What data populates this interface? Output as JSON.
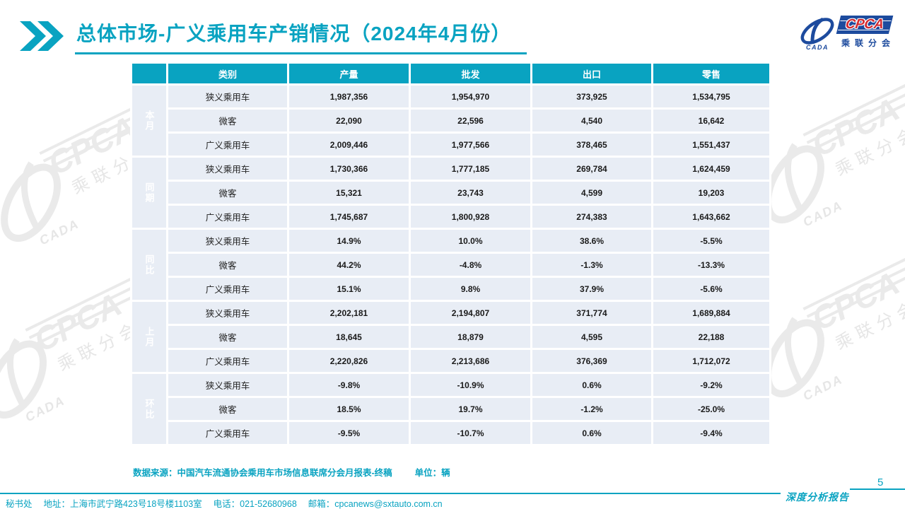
{
  "header": {
    "title": "总体市场-广义乘用车产销情况（2024年4月份）"
  },
  "logo": {
    "cpca_text": "CPCA",
    "cada_text": "CADA",
    "subtitle": "乘联分会"
  },
  "icons": {
    "title_marker": "double-chevron-right",
    "logo_mark": "cada-swoosh-ellipse"
  },
  "table": {
    "columns": [
      "类别",
      "产量",
      "批发",
      "出口",
      "零售"
    ],
    "groups": [
      {
        "label": "本月",
        "rows": [
          {
            "category": "狭义乘用车",
            "values": [
              "1,987,356",
              "1,954,970",
              "373,925",
              "1,534,795"
            ]
          },
          {
            "category": "微客",
            "values": [
              "22,090",
              "22,596",
              "4,540",
              "16,642"
            ]
          },
          {
            "category": "广义乘用车",
            "values": [
              "2,009,446",
              "1,977,566",
              "378,465",
              "1,551,437"
            ]
          }
        ]
      },
      {
        "label": "同期",
        "rows": [
          {
            "category": "狭义乘用车",
            "values": [
              "1,730,366",
              "1,777,185",
              "269,784",
              "1,624,459"
            ]
          },
          {
            "category": "微客",
            "values": [
              "15,321",
              "23,743",
              "4,599",
              "19,203"
            ]
          },
          {
            "category": "广义乘用车",
            "values": [
              "1,745,687",
              "1,800,928",
              "274,383",
              "1,643,662"
            ]
          }
        ]
      },
      {
        "label": "同比",
        "rows": [
          {
            "category": "狭义乘用车",
            "values": [
              "14.9%",
              "10.0%",
              "38.6%",
              "-5.5%"
            ]
          },
          {
            "category": "微客",
            "values": [
              "44.2%",
              "-4.8%",
              "-1.3%",
              "-13.3%"
            ]
          },
          {
            "category": "广义乘用车",
            "values": [
              "15.1%",
              "9.8%",
              "37.9%",
              "-5.6%"
            ]
          }
        ]
      },
      {
        "label": "上月",
        "rows": [
          {
            "category": "狭义乘用车",
            "values": [
              "2,202,181",
              "2,194,807",
              "371,774",
              "1,689,884"
            ]
          },
          {
            "category": "微客",
            "values": [
              "18,645",
              "18,879",
              "4,595",
              "22,188"
            ]
          },
          {
            "category": "广义乘用车",
            "values": [
              "2,220,826",
              "2,213,686",
              "376,369",
              "1,712,072"
            ]
          }
        ]
      },
      {
        "label": "环比",
        "rows": [
          {
            "category": "狭义乘用车",
            "values": [
              "-9.8%",
              "-10.9%",
              "0.6%",
              "-9.2%"
            ]
          },
          {
            "category": "微客",
            "values": [
              "18.5%",
              "19.7%",
              "-1.2%",
              "-25.0%"
            ]
          },
          {
            "category": "广义乘用车",
            "values": [
              "-9.5%",
              "-10.7%",
              "0.6%",
              "-9.4%"
            ]
          }
        ]
      }
    ]
  },
  "notes": {
    "source": "数据来源：中国汽车流通协会乘用车市场信息联席分会月报表-终稿",
    "unit": "单位：辆"
  },
  "footer": {
    "secretariat": "秘书处",
    "address": "地址：上海市武宁路423号18号楼1103室",
    "phone": "电话：021-52680968",
    "email": "邮箱：cpcanews@sxtauto.com.cn",
    "report_label": "深度分析报告",
    "page_number": "5"
  },
  "colors": {
    "teal": "#09A3C1",
    "row_bg": "#E8EDF5",
    "logo_blue": "#1D4B9E",
    "logo_red": "#D2282E",
    "watermark_gray": "#EAEAEA"
  }
}
